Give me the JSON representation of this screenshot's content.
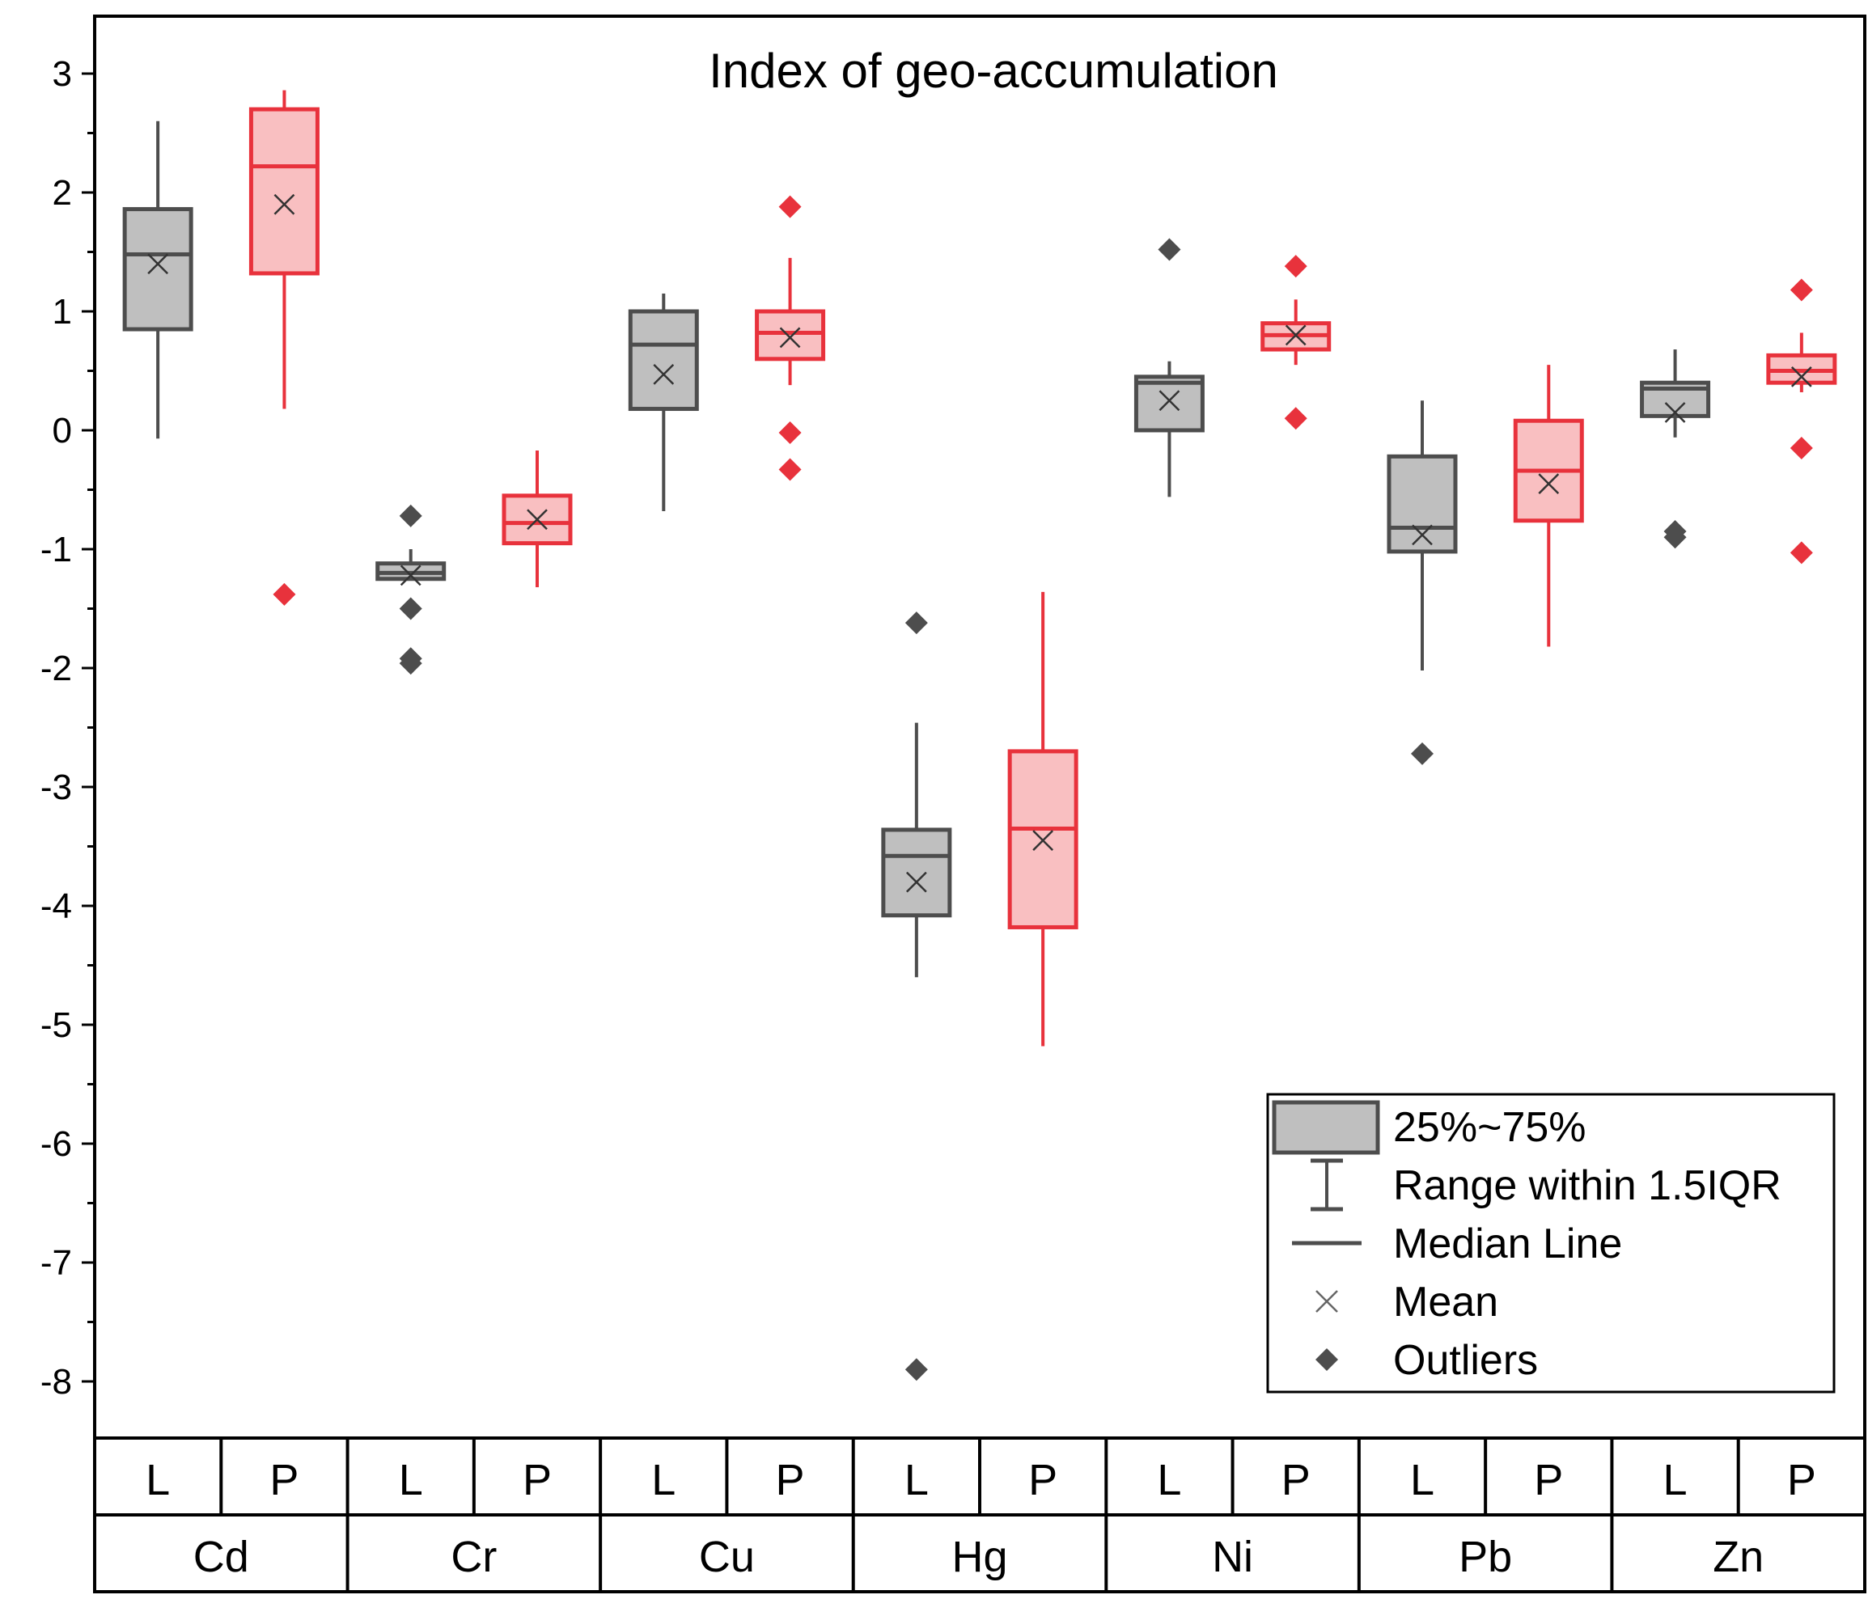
{
  "chart_data": {
    "type": "box",
    "title": "Index of geo-accumulation",
    "xlabel": "",
    "ylabel": "",
    "ylim": [
      -8.5,
      3.5
    ],
    "yticks": [
      3,
      2,
      1,
      0,
      -1,
      -2,
      -3,
      -4,
      -5,
      -6,
      -7,
      -8
    ],
    "ytick_labels": [
      "3",
      "2",
      "1",
      "0",
      "-1",
      "-2",
      "-3",
      "-4",
      "-5",
      "-6",
      "-7",
      "-8"
    ],
    "groups": [
      "Cd",
      "Cr",
      "Cu",
      "Hg",
      "Ni",
      "Pb",
      "Zn"
    ],
    "subgroups": [
      "L",
      "P"
    ],
    "colors": {
      "L": {
        "stroke": "#4d4d4d",
        "fill": "#bfbfbf"
      },
      "P": {
        "stroke": "#e8323c",
        "fill": "#f9bfc1"
      }
    },
    "boxes": [
      {
        "group": "Cd",
        "sub": "L",
        "whisker_low": -0.07,
        "q1": 0.85,
        "median": 1.48,
        "q3": 1.86,
        "whisker_high": 2.6,
        "mean": 1.4,
        "outliers": []
      },
      {
        "group": "Cd",
        "sub": "P",
        "whisker_low": 0.18,
        "q1": 1.32,
        "median": 2.22,
        "q3": 2.7,
        "whisker_high": 2.86,
        "mean": 1.9,
        "outliers": [
          -1.38
        ]
      },
      {
        "group": "Cr",
        "sub": "L",
        "whisker_low": -1.25,
        "q1": -1.25,
        "median": -1.2,
        "q3": -1.12,
        "whisker_high": -1.0,
        "mean": -1.22,
        "outliers": [
          -0.72,
          -1.5,
          -1.92,
          -1.96
        ]
      },
      {
        "group": "Cr",
        "sub": "P",
        "whisker_low": -1.32,
        "q1": -0.95,
        "median": -0.78,
        "q3": -0.55,
        "whisker_high": -0.17,
        "mean": -0.75,
        "outliers": []
      },
      {
        "group": "Cu",
        "sub": "L",
        "whisker_low": -0.68,
        "q1": 0.18,
        "median": 0.72,
        "q3": 1.0,
        "whisker_high": 1.15,
        "mean": 0.47,
        "outliers": []
      },
      {
        "group": "Cu",
        "sub": "P",
        "whisker_low": 0.38,
        "q1": 0.6,
        "median": 0.82,
        "q3": 1.0,
        "whisker_high": 1.45,
        "mean": 0.78,
        "outliers": [
          1.88,
          -0.02,
          -0.33
        ]
      },
      {
        "group": "Hg",
        "sub": "L",
        "whisker_low": -4.6,
        "q1": -4.08,
        "median": -3.58,
        "q3": -3.36,
        "whisker_high": -2.46,
        "mean": -3.8,
        "outliers": [
          -1.62,
          -7.9
        ]
      },
      {
        "group": "Hg",
        "sub": "P",
        "whisker_low": -5.18,
        "q1": -4.18,
        "median": -3.35,
        "q3": -2.7,
        "whisker_high": -1.36,
        "mean": -3.45,
        "outliers": []
      },
      {
        "group": "Ni",
        "sub": "L",
        "whisker_low": -0.56,
        "q1": 0.0,
        "median": 0.4,
        "q3": 0.45,
        "whisker_high": 0.58,
        "mean": 0.25,
        "outliers": [
          1.52
        ]
      },
      {
        "group": "Ni",
        "sub": "P",
        "whisker_low": 0.55,
        "q1": 0.68,
        "median": 0.8,
        "q3": 0.9,
        "whisker_high": 1.1,
        "mean": 0.8,
        "outliers": [
          1.38,
          0.1
        ]
      },
      {
        "group": "Pb",
        "sub": "L",
        "whisker_low": -2.02,
        "q1": -1.02,
        "median": -0.82,
        "q3": -0.22,
        "whisker_high": 0.25,
        "mean": -0.88,
        "outliers": [
          -2.72
        ]
      },
      {
        "group": "Pb",
        "sub": "P",
        "whisker_low": -1.82,
        "q1": -0.76,
        "median": -0.34,
        "q3": 0.08,
        "whisker_high": 0.55,
        "mean": -0.45,
        "outliers": []
      },
      {
        "group": "Zn",
        "sub": "L",
        "whisker_low": -0.06,
        "q1": 0.12,
        "median": 0.35,
        "q3": 0.4,
        "whisker_high": 0.68,
        "mean": 0.15,
        "outliers": [
          -0.85,
          -0.9
        ]
      },
      {
        "group": "Zn",
        "sub": "P",
        "whisker_low": 0.32,
        "q1": 0.4,
        "median": 0.5,
        "q3": 0.63,
        "whisker_high": 0.82,
        "mean": 0.45,
        "outliers": [
          1.18,
          -0.15,
          -1.03
        ]
      }
    ],
    "legend": {
      "position": "bottom-right",
      "items": [
        "25%~75%",
        "Range within 1.5IQR",
        "Median Line",
        "Mean",
        "Outliers"
      ]
    }
  }
}
